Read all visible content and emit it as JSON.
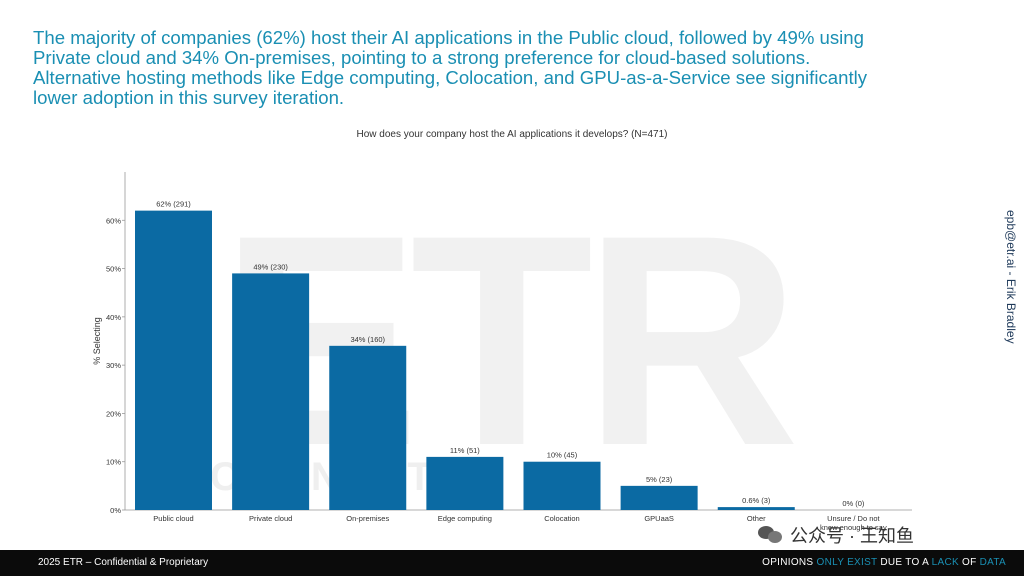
{
  "headline": {
    "line1": "The majority of companies (62%) host their AI applications in the Public cloud, followed by 49% using",
    "line2": "Private cloud and 34% On-premises, pointing to a strong preference for cloud-based solutions.",
    "line3": "Alternative hosting methods like Edge computing, Colocation, and GPU-as-a-Service see significantly",
    "line4": "lower adoption in this survey iteration."
  },
  "watermark": {
    "logo_text": "ETR",
    "subtext": "CONNECT"
  },
  "side_credit": "epb@etr.ai - Erik Bradley",
  "footer": {
    "left": "2025 ETR – Confidential & Proprietary",
    "right_parts": [
      "OPINIONS ",
      "ONLY EXIST ",
      "DUE TO A ",
      "LACK ",
      "OF ",
      "DATA"
    ]
  },
  "wechat": {
    "label": "公众号 · 王知鱼"
  },
  "colors": {
    "bar": "#0b6aa3",
    "headline": "#1a8fb3"
  },
  "chart_data": {
    "type": "bar",
    "title": "How does your company host the AI applications it develops? (N=471)",
    "ylabel": "% Selecting",
    "xlabel": "",
    "ylim": [
      0,
      70
    ],
    "yticks": [
      0,
      10,
      20,
      30,
      40,
      50,
      60
    ],
    "ytick_labels": [
      "0%",
      "10%",
      "20%",
      "30%",
      "40%",
      "50%",
      "60%"
    ],
    "categories": [
      "Public cloud",
      "Private cloud",
      "On-premises",
      "Edge computing",
      "Colocation",
      "GPUaaS",
      "Other",
      "Unsure / Do not know enough to say"
    ],
    "values": [
      62,
      49,
      34,
      11,
      10,
      5,
      0.6,
      0
    ],
    "labels": [
      "62% (291)",
      "49% (230)",
      "34% (160)",
      "11% (51)",
      "10% (45)",
      "5% (23)",
      "0.6% (3)",
      "0% (0)"
    ]
  }
}
